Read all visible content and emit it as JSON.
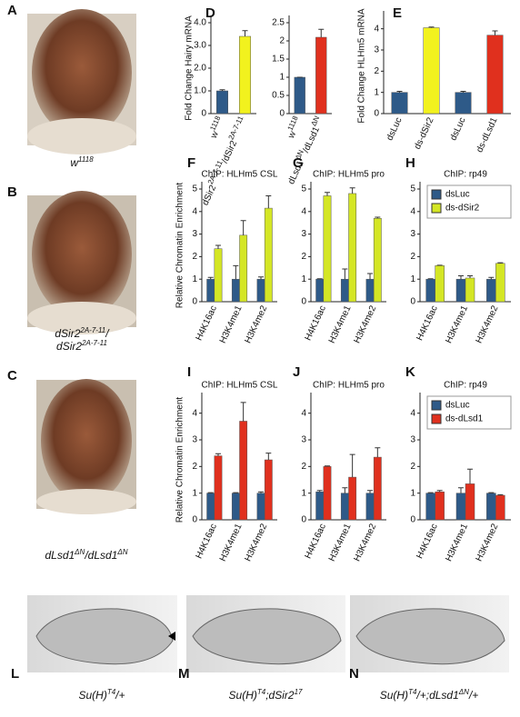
{
  "panel_labels": [
    "A",
    "B",
    "C",
    "D",
    "E",
    "F",
    "G",
    "H",
    "I",
    "J",
    "K",
    "L",
    "M",
    "N"
  ],
  "photos": [
    {
      "caption_lines": [
        [
          "w",
          "1118"
        ]
      ]
    },
    {
      "caption_lines": [
        [
          "dSir2",
          "2A-7-11",
          "/"
        ],
        [
          "dSir2",
          "2A-7-11"
        ]
      ]
    },
    {
      "caption_lines": [
        [
          "dLsd1",
          "ΔN",
          "/dLsd1",
          "ΔN"
        ]
      ]
    }
  ],
  "wings": [
    {
      "caption_lines": [
        [
          "Su(H)",
          "T4",
          "/+"
        ]
      ]
    },
    {
      "caption_lines": [
        [
          "Su(H)",
          "T4",
          ";dSir2",
          "17"
        ]
      ]
    },
    {
      "caption_lines": [
        [
          "Su(H)",
          "T4",
          "/+;dLsd1",
          "ΔN",
          "/+"
        ]
      ]
    }
  ],
  "chart_data": [
    {
      "type": "bar",
      "ylabel": "Fold Change Hairy mRNA",
      "categories": [
        [
          "w",
          "1118"
        ],
        [
          "dSir2",
          "2A-7-11",
          "/dSir2",
          "2A-7-11"
        ]
      ],
      "values": [
        1.0,
        3.4
      ],
      "errors": [
        0.05,
        0.25
      ],
      "colors": [
        "#2e5a88",
        "#f2f21e"
      ],
      "ylim": [
        0,
        4
      ],
      "yticks": [
        0,
        {
          "value": 1,
          "label": "1.0"
        },
        {
          "value": 2,
          "label": "2.0"
        },
        {
          "value": 3,
          "label": "3.0"
        },
        {
          "value": 4,
          "label": "4.0"
        }
      ]
    },
    {
      "type": "bar",
      "categories": [
        [
          "w",
          "1118"
        ],
        [
          "dLsd1",
          "ΔN",
          "/dLsd1",
          "ΔN"
        ]
      ],
      "values": [
        1.0,
        2.1
      ],
      "errors": [
        0.0,
        0.22
      ],
      "colors": [
        "#2e5a88",
        "#e0301e"
      ],
      "ylim": [
        0,
        2.5
      ],
      "yticks": [
        0,
        0.5,
        1,
        1.5,
        2,
        2.5
      ]
    },
    {
      "type": "bar",
      "ylabel": "Fold Change HLHm5 mRNA",
      "categories": [
        "dsLuc",
        "ds-dSir2",
        "dsLuc",
        "ds-dLsd1"
      ],
      "values": [
        1.0,
        4.05,
        1.0,
        3.7
      ],
      "errors": [
        0.05,
        0.03,
        0.05,
        0.2
      ],
      "colors": [
        "#2e5a88",
        "#f2f21e",
        "#2e5a88",
        "#e0301e"
      ],
      "ylim": [
        0,
        4.5
      ],
      "yticks": [
        0,
        1,
        2,
        3,
        4
      ]
    },
    {
      "type": "bar",
      "title": "ChIP: HLHm5 CSL",
      "ylabel": "Relative Chromatin Enrichment",
      "categories": [
        "H4K16ac",
        "H3K4me1",
        "H3K4me2"
      ],
      "series": [
        {
          "name": "dsLuc",
          "color": "#2e5a88",
          "values": [
            1.0,
            1.0,
            1.0
          ],
          "errors": [
            0.08,
            0.6,
            0.1
          ]
        },
        {
          "name": "ds-dSir2",
          "color": "#d4e625",
          "values": [
            2.35,
            2.95,
            4.15
          ],
          "errors": [
            0.15,
            0.65,
            0.55
          ]
        }
      ],
      "ylim": [
        0,
        5
      ],
      "yticks": [
        0,
        1,
        2,
        3,
        4,
        5
      ]
    },
    {
      "type": "bar",
      "title": "ChIP: HLHm5 pro",
      "categories": [
        "H4K16ac",
        "H3K4me1",
        "H3K4me2"
      ],
      "series": [
        {
          "name": "dsLuc",
          "color": "#2e5a88",
          "values": [
            1.0,
            1.0,
            1.0
          ],
          "errors": [
            0.02,
            0.45,
            0.25
          ]
        },
        {
          "name": "ds-dSir2",
          "color": "#d4e625",
          "values": [
            4.7,
            4.8,
            3.7
          ],
          "errors": [
            0.15,
            0.25,
            0.05
          ]
        }
      ],
      "ylim": [
        0,
        5
      ],
      "yticks": [
        0,
        1,
        2,
        3,
        4,
        5
      ]
    },
    {
      "type": "bar",
      "title": "ChIP: rp49",
      "legend": "upper right",
      "categories": [
        "H4K16ac",
        "H3K4me1",
        "H3K4me2"
      ],
      "series": [
        {
          "name": "dsLuc",
          "color": "#2e5a88",
          "values": [
            1.0,
            1.0,
            1.0
          ],
          "errors": [
            0.02,
            0.15,
            0.08
          ]
        },
        {
          "name": "ds-dSir2",
          "color": "#d4e625",
          "values": [
            1.6,
            1.05,
            1.7
          ],
          "errors": [
            0.02,
            0.1,
            0.03
          ]
        }
      ],
      "ylim": [
        0,
        5
      ],
      "yticks": [
        0,
        1,
        2,
        3,
        4,
        5
      ]
    },
    {
      "type": "bar",
      "title": "ChIP: HLHm5 CSL",
      "ylabel": "Relative Chromatin Enrichment",
      "categories": [
        "H4K16ac",
        "H3K4me1",
        "H3K4me2"
      ],
      "series": [
        {
          "name": "dsLuc",
          "color": "#2e5a88",
          "values": [
            1.0,
            1.0,
            1.0
          ],
          "errors": [
            0.02,
            0.02,
            0.05
          ]
        },
        {
          "name": "ds-dLsd1",
          "color": "#e0301e",
          "values": [
            2.4,
            3.7,
            2.25
          ],
          "errors": [
            0.08,
            0.7,
            0.25
          ]
        }
      ],
      "ylim": [
        0,
        4.5
      ],
      "yticks": [
        0,
        1,
        2,
        3,
        4
      ]
    },
    {
      "type": "bar",
      "title": "ChIP: HLHm5 pro",
      "categories": [
        "H4K16ac",
        "H3K4me1",
        "H3K4me2"
      ],
      "series": [
        {
          "name": "dsLuc",
          "color": "#2e5a88",
          "values": [
            1.05,
            1.0,
            1.0
          ],
          "errors": [
            0.05,
            0.2,
            0.1
          ]
        },
        {
          "name": "ds-dLsd1",
          "color": "#e0301e",
          "values": [
            2.0,
            1.6,
            2.35
          ],
          "errors": [
            0.02,
            0.85,
            0.35
          ]
        }
      ],
      "ylim": [
        0,
        4.5
      ],
      "yticks": [
        0,
        1,
        2,
        3,
        4
      ]
    },
    {
      "type": "bar",
      "title": "ChIP: rp49",
      "legend": "upper right",
      "categories": [
        "H4K16ac",
        "H3K4me1",
        "H3K4me2"
      ],
      "series": [
        {
          "name": "dsLuc",
          "color": "#2e5a88",
          "values": [
            1.0,
            1.0,
            1.0
          ],
          "errors": [
            0.02,
            0.2,
            0.02
          ]
        },
        {
          "name": "ds-dLsd1",
          "color": "#e0301e",
          "values": [
            1.05,
            1.35,
            0.92
          ],
          "errors": [
            0.05,
            0.55,
            0.02
          ]
        }
      ],
      "ylim": [
        0,
        4.5
      ],
      "yticks": [
        0,
        1,
        2,
        3,
        4
      ]
    }
  ]
}
